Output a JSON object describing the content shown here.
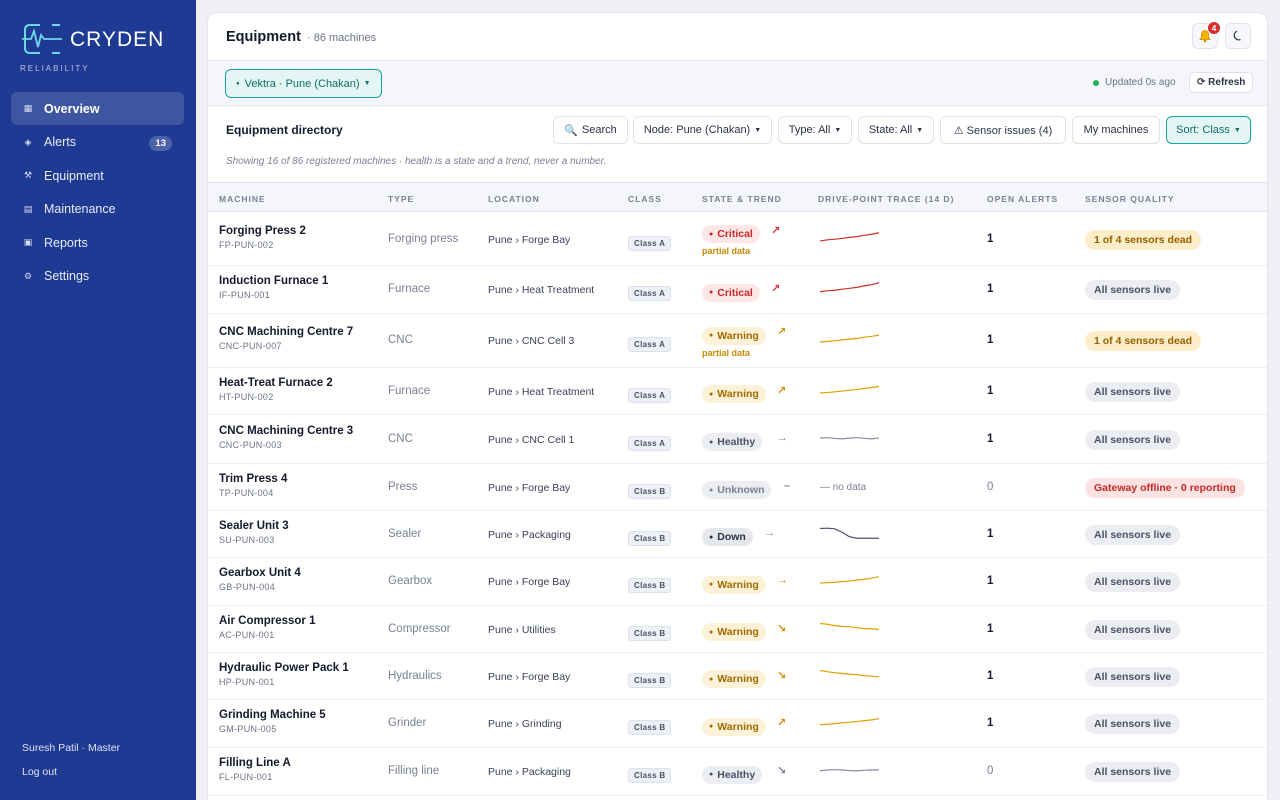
{
  "brand": {
    "name": "CRYDEN",
    "sub": "RELIABILITY",
    "logo_icon": "pulse-logo-icon"
  },
  "nav": [
    {
      "label": "Overview",
      "icon": "grid-icon",
      "active": true
    },
    {
      "label": "Alerts",
      "icon": "diamond-icon",
      "badge": "13"
    },
    {
      "label": "Equipment",
      "icon": "tools-icon"
    },
    {
      "label": "Maintenance",
      "icon": "calendar-icon"
    },
    {
      "label": "Reports",
      "icon": "report-icon"
    },
    {
      "label": "Settings",
      "icon": "gear-icon"
    }
  ],
  "user": {
    "name": "Suresh Patil · Master",
    "logout": "Log out"
  },
  "header": {
    "title": "Equipment",
    "count": "· 86 machines",
    "bell_count": "4"
  },
  "filterbar": {
    "node_chip": "Vektra · Pune (Chakan)",
    "updated": "Updated 0s ago",
    "refresh": "⟳ Refresh"
  },
  "directory": {
    "title": "Equipment directory",
    "search": "Search",
    "node_filter": "Node: Pune (Chakan)",
    "type_filter": "Type: All",
    "state_filter": "State: All",
    "sensor_issues": "⚠ Sensor issues (4)",
    "my_machines": "My machines",
    "sort": "Sort: Class",
    "note": "Showing 16 of 86 registered machines · health is a state and a trend, never a number."
  },
  "columns": [
    "MACHINE",
    "TYPE",
    "LOCATION",
    "CLASS",
    "STATE & TREND",
    "DRIVE-POINT TRACE (14 D)",
    "OPEN ALERTS",
    "SENSOR QUALITY"
  ],
  "colors": {
    "critical": "#d32f2f",
    "warning": "#e0a000",
    "healthy": "#8a8fa0",
    "down": "#4b5266",
    "sidebar": "#1f3a93",
    "accent": "#1aa39a"
  },
  "rows": [
    {
      "name": "Forging Press 2",
      "id": "FP-PUN-002",
      "type": "Forging press",
      "location": "Pune › Forge Bay",
      "class": "Class A",
      "state": "Critical",
      "state_key": "critical",
      "trend": "↗",
      "partial": "partial data",
      "trace": [
        6,
        5.2,
        4.8,
        4.3,
        3.6,
        3.1,
        2.2,
        1.5,
        0.5
      ],
      "alerts": "1",
      "sensor": "1 of 4 sensors dead",
      "sensor_key": "dead"
    },
    {
      "name": "Induction Furnace 1",
      "id": "IF-PUN-001",
      "type": "Furnace",
      "location": "Pune › Heat Treatment",
      "class": "Class A",
      "state": "Critical",
      "state_key": "critical",
      "trend": "↗",
      "trace": [
        6.5,
        5.8,
        5.5,
        4.8,
        4.2,
        3.6,
        2.6,
        1.8,
        0.5
      ],
      "alerts": "1",
      "sensor": "All sensors live",
      "sensor_key": "live"
    },
    {
      "name": "CNC Machining Centre 7",
      "id": "CNC-PUN-007",
      "type": "CNC",
      "location": "Pune › CNC Cell 3",
      "class": "Class A",
      "state": "Warning",
      "state_key": "warning",
      "trend": "↗",
      "partial": "partial data",
      "trace": [
        6,
        5.6,
        5.2,
        4.6,
        4.1,
        3.6,
        2.8,
        2.2,
        1.4
      ],
      "alerts": "1",
      "sensor": "1 of 4 sensors dead",
      "sensor_key": "dead"
    },
    {
      "name": "Heat-Treat Furnace 2",
      "id": "HT-PUN-002",
      "type": "Furnace",
      "location": "Pune › Heat Treatment",
      "class": "Class A",
      "state": "Warning",
      "state_key": "warning",
      "trend": "↗",
      "trace": [
        6,
        5.7,
        5.2,
        4.7,
        4.2,
        3.7,
        3,
        2.4,
        1.6
      ],
      "alerts": "1",
      "sensor": "All sensors live",
      "sensor_key": "live"
    },
    {
      "name": "CNC Machining Centre 3",
      "id": "CNC-PUN-003",
      "type": "CNC",
      "location": "Pune › CNC Cell 1",
      "class": "Class A",
      "state": "Healthy",
      "state_key": "healthy",
      "trend": "→",
      "trace": [
        4,
        3.8,
        4.3,
        4.6,
        4.1,
        3.7,
        4.2,
        4.6,
        4
      ],
      "alerts": "1",
      "sensor": "All sensors live",
      "sensor_key": "live"
    },
    {
      "name": "Trim Press 4",
      "id": "TP-PUN-004",
      "type": "Press",
      "location": "Pune › Forge Bay",
      "class": "Class B",
      "state": "Unknown",
      "state_key": "unknown",
      "trend": "–",
      "nodata": "— no data",
      "alerts": "0",
      "sensor": "Gateway offline · 0 reporting",
      "sensor_key": "offline"
    },
    {
      "name": "Sealer Unit 3",
      "id": "SU-PUN-003",
      "type": "Sealer",
      "location": "Pune › Packaging",
      "class": "Class B",
      "state": "Down",
      "state_key": "down",
      "trend": "→",
      "trace": [
        1,
        0.8,
        1.2,
        3.5,
        6.5,
        7.5,
        7.5,
        7.5,
        7.5
      ],
      "alerts": "1",
      "sensor": "All sensors live",
      "sensor_key": "live"
    },
    {
      "name": "Gearbox Unit 4",
      "id": "GB-PUN-004",
      "type": "Gearbox",
      "location": "Pune › Forge Bay",
      "class": "Class B",
      "state": "Warning",
      "state_key": "warning",
      "trend": "→",
      "trace": [
        6,
        5.8,
        5.5,
        5.1,
        4.7,
        4.1,
        3.5,
        2.8,
        1.8
      ],
      "alerts": "1",
      "sensor": "All sensors live",
      "sensor_key": "live"
    },
    {
      "name": "Air Compressor 1",
      "id": "AC-PUN-001",
      "type": "Compressor",
      "location": "Pune › Utilities",
      "class": "Class B",
      "state": "Warning",
      "state_key": "warning",
      "trend": "↘",
      "trace": [
        1,
        1.5,
        2.4,
        3,
        3.2,
        3.8,
        4.4,
        4.6,
        5
      ],
      "alerts": "1",
      "sensor": "All sensors live",
      "sensor_key": "live"
    },
    {
      "name": "Hydraulic Power Pack 1",
      "id": "HP-PUN-001",
      "type": "Hydraulics",
      "location": "Pune › Forge Bay",
      "class": "Class B",
      "state": "Warning",
      "state_key": "warning",
      "trend": "↘",
      "trace": [
        1,
        1.8,
        2.5,
        3,
        3.4,
        3.8,
        4.4,
        4.8,
        5.2
      ],
      "alerts": "1",
      "sensor": "All sensors live",
      "sensor_key": "live"
    },
    {
      "name": "Grinding Machine 5",
      "id": "GM-PUN-005",
      "type": "Grinder",
      "location": "Pune › Grinding",
      "class": "Class B",
      "state": "Warning",
      "state_key": "warning",
      "trend": "↗",
      "trace": [
        5.8,
        5.5,
        5.1,
        4.6,
        4.2,
        3.7,
        3.1,
        2.6,
        1.8
      ],
      "alerts": "1",
      "sensor": "All sensors live",
      "sensor_key": "live"
    },
    {
      "name": "Filling Line A",
      "id": "FL-PUN-001",
      "type": "Filling line",
      "location": "Pune › Packaging",
      "class": "Class B",
      "state": "Healthy",
      "state_key": "healthy",
      "trend": "↘",
      "trace": [
        4.5,
        4,
        3.7,
        4,
        4.4,
        4.6,
        4.2,
        3.9,
        4
      ],
      "alerts": "0",
      "sensor": "All sensors live",
      "sensor_key": "live"
    }
  ]
}
